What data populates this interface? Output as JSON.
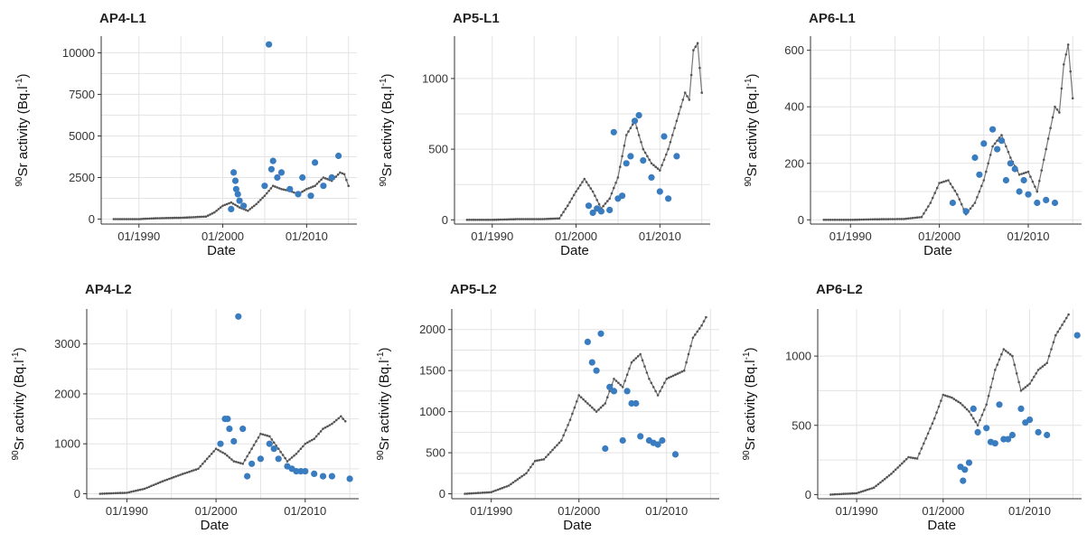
{
  "colors": {
    "model": "#777777",
    "model_points": "#555555",
    "observed": "#3a7cc0",
    "grid": "#e3e3e3"
  },
  "ylabel": {
    "sup": "90",
    "main": "Sr activity (Bq.l",
    "unit_sup": "-1",
    "close": ")"
  },
  "chart_data": [
    {
      "title": "AP4-L1",
      "type": "scatter",
      "xlabel": "Date",
      "xlim": [
        1985.5,
        2016
      ],
      "ylim": [
        -300,
        11000
      ],
      "xticks": [
        1990,
        2000,
        2010
      ],
      "xtick_labels": [
        "01/1990",
        "01/2000",
        "01/2010"
      ],
      "yticks": [
        0,
        2500,
        5000,
        7500,
        10000
      ],
      "ytick_labels": [
        "0",
        "2500",
        "5000",
        "7500",
        "10000"
      ],
      "model": [
        [
          1987,
          0
        ],
        [
          1990,
          0
        ],
        [
          1992,
          50
        ],
        [
          1995,
          80
        ],
        [
          1998,
          150
        ],
        [
          1999,
          400
        ],
        [
          2000,
          800
        ],
        [
          2001,
          1000
        ],
        [
          2002,
          700
        ],
        [
          2003,
          500
        ],
        [
          2004,
          900
        ],
        [
          2005,
          1400
        ],
        [
          2006,
          2000
        ],
        [
          2007,
          1800
        ],
        [
          2008,
          1700
        ],
        [
          2009,
          1500
        ],
        [
          2010,
          1800
        ],
        [
          2011,
          2000
        ],
        [
          2012,
          2500
        ],
        [
          2013,
          2300
        ],
        [
          2014,
          2800
        ],
        [
          2014.5,
          2700
        ],
        [
          2015,
          2000
        ]
      ],
      "observed": [
        [
          2001,
          600
        ],
        [
          2001.3,
          2800
        ],
        [
          2001.5,
          2300
        ],
        [
          2001.6,
          1800
        ],
        [
          2001.8,
          1500
        ],
        [
          2002,
          1100
        ],
        [
          2002.5,
          800
        ],
        [
          2005,
          2000
        ],
        [
          2005.5,
          10500
        ],
        [
          2005.8,
          3000
        ],
        [
          2006,
          3500
        ],
        [
          2006.5,
          2500
        ],
        [
          2007,
          2800
        ],
        [
          2008,
          1800
        ],
        [
          2009,
          1500
        ],
        [
          2009.5,
          2500
        ],
        [
          2010.5,
          1400
        ],
        [
          2011,
          3400
        ],
        [
          2012,
          2000
        ],
        [
          2013,
          2500
        ],
        [
          2013.8,
          3800
        ]
      ]
    },
    {
      "title": "AP5-L1",
      "type": "scatter",
      "xlabel": "Date",
      "xlim": [
        1985.5,
        2016
      ],
      "ylim": [
        -30,
        1300
      ],
      "xticks": [
        1990,
        2000,
        2010
      ],
      "xtick_labels": [
        "01/1990",
        "01/2000",
        "01/2010"
      ],
      "yticks": [
        0,
        500,
        1000
      ],
      "ytick_labels": [
        "0",
        "500",
        "1000"
      ],
      "model": [
        [
          1987,
          0
        ],
        [
          1990,
          0
        ],
        [
          1993,
          5
        ],
        [
          1996,
          5
        ],
        [
          1998,
          10
        ],
        [
          1999,
          100
        ],
        [
          2000,
          200
        ],
        [
          2001,
          290
        ],
        [
          2002,
          200
        ],
        [
          2003,
          80
        ],
        [
          2004,
          150
        ],
        [
          2005,
          300
        ],
        [
          2006,
          600
        ],
        [
          2007,
          700
        ],
        [
          2008,
          500
        ],
        [
          2009,
          400
        ],
        [
          2010,
          350
        ],
        [
          2011,
          500
        ],
        [
          2012,
          700
        ],
        [
          2013,
          900
        ],
        [
          2013.5,
          850
        ],
        [
          2014,
          1200
        ],
        [
          2014.5,
          1250
        ],
        [
          2015,
          900
        ]
      ],
      "observed": [
        [
          2001.5,
          100
        ],
        [
          2002,
          50
        ],
        [
          2002.5,
          80
        ],
        [
          2003,
          60
        ],
        [
          2004,
          70
        ],
        [
          2004.5,
          620
        ],
        [
          2005,
          150
        ],
        [
          2005.5,
          170
        ],
        [
          2006,
          400
        ],
        [
          2006.5,
          450
        ],
        [
          2007,
          700
        ],
        [
          2007.5,
          740
        ],
        [
          2008,
          420
        ],
        [
          2009,
          300
        ],
        [
          2010,
          200
        ],
        [
          2010.5,
          590
        ],
        [
          2011,
          150
        ],
        [
          2012,
          450
        ]
      ]
    },
    {
      "title": "AP6-L1",
      "type": "scatter",
      "xlabel": "Date",
      "xlim": [
        1985.5,
        2016
      ],
      "ylim": [
        -15,
        650
      ],
      "xticks": [
        1990,
        2000,
        2010
      ],
      "xtick_labels": [
        "01/1990",
        "01/2000",
        "01/2010"
      ],
      "yticks": [
        0,
        200,
        400,
        600
      ],
      "ytick_labels": [
        "0",
        "200",
        "400",
        "600"
      ],
      "model": [
        [
          1987,
          0
        ],
        [
          1990,
          0
        ],
        [
          1993,
          2
        ],
        [
          1996,
          3
        ],
        [
          1998,
          10
        ],
        [
          1999,
          60
        ],
        [
          2000,
          130
        ],
        [
          2001,
          140
        ],
        [
          2002,
          90
        ],
        [
          2003,
          20
        ],
        [
          2004,
          60
        ],
        [
          2005,
          140
        ],
        [
          2006,
          260
        ],
        [
          2007,
          300
        ],
        [
          2008,
          220
        ],
        [
          2009,
          160
        ],
        [
          2010,
          170
        ],
        [
          2011,
          100
        ],
        [
          2012,
          250
        ],
        [
          2013,
          400
        ],
        [
          2013.5,
          380
        ],
        [
          2014,
          550
        ],
        [
          2014.5,
          620
        ],
        [
          2015,
          430
        ]
      ],
      "observed": [
        [
          2001.5,
          60
        ],
        [
          2003,
          30
        ],
        [
          2004,
          220
        ],
        [
          2004.5,
          160
        ],
        [
          2005,
          270
        ],
        [
          2006,
          320
        ],
        [
          2006.5,
          250
        ],
        [
          2007,
          280
        ],
        [
          2007.5,
          140
        ],
        [
          2008,
          200
        ],
        [
          2008.5,
          180
        ],
        [
          2009,
          100
        ],
        [
          2009.5,
          140
        ],
        [
          2010,
          90
        ],
        [
          2011,
          60
        ],
        [
          2012,
          70
        ],
        [
          2013,
          60
        ]
      ]
    },
    {
      "title": "AP4-L2",
      "type": "scatter",
      "xlabel": "Date",
      "xlim": [
        1985.5,
        2016
      ],
      "ylim": [
        -100,
        3700
      ],
      "xticks": [
        1990,
        2000,
        2010
      ],
      "xtick_labels": [
        "01/1990",
        "01/2000",
        "01/2010"
      ],
      "yticks": [
        0,
        1000,
        2000,
        3000
      ],
      "ytick_labels": [
        "0",
        "1000",
        "2000",
        "3000"
      ],
      "model": [
        [
          1987,
          0
        ],
        [
          1990,
          20
        ],
        [
          1992,
          100
        ],
        [
          1994,
          250
        ],
        [
          1996,
          380
        ],
        [
          1998,
          500
        ],
        [
          1999,
          700
        ],
        [
          2000,
          900
        ],
        [
          2001,
          800
        ],
        [
          2002,
          650
        ],
        [
          2003,
          600
        ],
        [
          2004,
          900
        ],
        [
          2005,
          1200
        ],
        [
          2006,
          1150
        ],
        [
          2007,
          900
        ],
        [
          2008,
          650
        ],
        [
          2009,
          800
        ],
        [
          2010,
          1000
        ],
        [
          2011,
          1100
        ],
        [
          2012,
          1300
        ],
        [
          2013,
          1400
        ],
        [
          2014,
          1550
        ],
        [
          2014.5,
          1450
        ]
      ],
      "observed": [
        [
          2000.5,
          1000
        ],
        [
          2001,
          1500
        ],
        [
          2001.3,
          1500
        ],
        [
          2001.5,
          1300
        ],
        [
          2002,
          1050
        ],
        [
          2002.5,
          3550
        ],
        [
          2003,
          1300
        ],
        [
          2003.5,
          350
        ],
        [
          2004,
          600
        ],
        [
          2005,
          700
        ],
        [
          2006,
          1000
        ],
        [
          2006.5,
          900
        ],
        [
          2007,
          700
        ],
        [
          2008,
          550
        ],
        [
          2008.5,
          500
        ],
        [
          2009,
          450
        ],
        [
          2009.5,
          450
        ],
        [
          2010,
          450
        ],
        [
          2011,
          400
        ],
        [
          2012,
          350
        ],
        [
          2013,
          350
        ],
        [
          2015,
          300
        ]
      ]
    },
    {
      "title": "AP5-L2",
      "type": "scatter",
      "xlabel": "Date",
      "xlim": [
        1985.5,
        2016
      ],
      "ylim": [
        -60,
        2250
      ],
      "xticks": [
        1990,
        2000,
        2010
      ],
      "xtick_labels": [
        "01/1990",
        "01/2000",
        "01/2010"
      ],
      "yticks": [
        0,
        500,
        1000,
        1500,
        2000
      ],
      "ytick_labels": [
        "0",
        "500",
        "1000",
        "1500",
        "2000"
      ],
      "model": [
        [
          1987,
          0
        ],
        [
          1990,
          20
        ],
        [
          1992,
          100
        ],
        [
          1994,
          250
        ],
        [
          1995,
          400
        ],
        [
          1996,
          420
        ],
        [
          1998,
          650
        ],
        [
          1999,
          900
        ],
        [
          2000,
          1200
        ],
        [
          2001,
          1100
        ],
        [
          2002,
          1000
        ],
        [
          2003,
          1100
        ],
        [
          2004,
          1400
        ],
        [
          2005,
          1300
        ],
        [
          2006,
          1600
        ],
        [
          2007,
          1700
        ],
        [
          2008,
          1400
        ],
        [
          2009,
          1200
        ],
        [
          2010,
          1400
        ],
        [
          2011,
          1450
        ],
        [
          2012,
          1500
        ],
        [
          2013,
          1900
        ],
        [
          2014,
          2050
        ],
        [
          2014.5,
          2150
        ]
      ],
      "observed": [
        [
          2001,
          1850
        ],
        [
          2001.5,
          1600
        ],
        [
          2002,
          1500
        ],
        [
          2002.5,
          1950
        ],
        [
          2003,
          550
        ],
        [
          2003.5,
          1300
        ],
        [
          2004,
          1250
        ],
        [
          2005,
          650
        ],
        [
          2005.5,
          1250
        ],
        [
          2006,
          1100
        ],
        [
          2006.5,
          1100
        ],
        [
          2007,
          700
        ],
        [
          2008,
          650
        ],
        [
          2008.5,
          620
        ],
        [
          2009,
          600
        ],
        [
          2009.5,
          650
        ],
        [
          2011,
          480
        ]
      ]
    },
    {
      "title": "AP6-L2",
      "type": "scatter",
      "xlabel": "Date",
      "xlim": [
        1985.5,
        2016
      ],
      "ylim": [
        -30,
        1340
      ],
      "xticks": [
        1990,
        2000,
        2010
      ],
      "xtick_labels": [
        "01/1990",
        "01/2000",
        "01/2010"
      ],
      "yticks": [
        0,
        500,
        1000
      ],
      "ytick_labels": [
        "0",
        "500",
        "1000"
      ],
      "model": [
        [
          1987,
          0
        ],
        [
          1990,
          10
        ],
        [
          1992,
          50
        ],
        [
          1994,
          150
        ],
        [
          1996,
          270
        ],
        [
          1997,
          260
        ],
        [
          1999,
          550
        ],
        [
          2000,
          720
        ],
        [
          2001,
          700
        ],
        [
          2002,
          660
        ],
        [
          2003,
          600
        ],
        [
          2004,
          500
        ],
        [
          2005,
          650
        ],
        [
          2006,
          900
        ],
        [
          2007,
          1050
        ],
        [
          2008,
          1000
        ],
        [
          2009,
          750
        ],
        [
          2010,
          800
        ],
        [
          2011,
          900
        ],
        [
          2012,
          950
        ],
        [
          2013,
          1150
        ],
        [
          2014,
          1250
        ],
        [
          2014.5,
          1300
        ]
      ],
      "observed": [
        [
          2002,
          200
        ],
        [
          2002.3,
          100
        ],
        [
          2002.5,
          180
        ],
        [
          2003,
          230
        ],
        [
          2003.5,
          620
        ],
        [
          2004,
          450
        ],
        [
          2005,
          480
        ],
        [
          2005.5,
          380
        ],
        [
          2006,
          370
        ],
        [
          2006.5,
          650
        ],
        [
          2007,
          400
        ],
        [
          2007.5,
          400
        ],
        [
          2008,
          430
        ],
        [
          2009,
          620
        ],
        [
          2009.5,
          520
        ],
        [
          2010,
          540
        ],
        [
          2011,
          450
        ],
        [
          2012,
          430
        ],
        [
          2015.5,
          1150
        ]
      ]
    }
  ]
}
